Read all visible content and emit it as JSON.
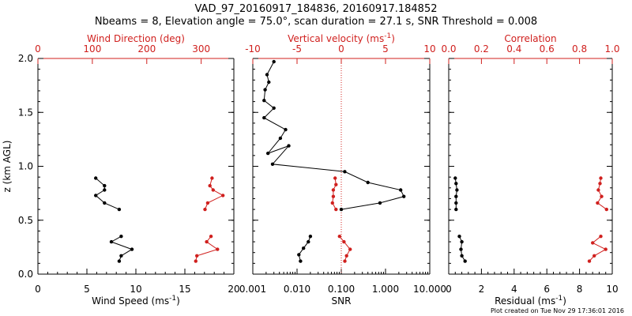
{
  "header": {
    "title_line1": "VAD_97_20160917_184836, 20160917.184852",
    "title_line2": "Nbeams = 8, Elevation angle = 75.0°, scan duration = 27.1 s, SNR Threshold = 0.008"
  },
  "footer": {
    "created": "Plot created on Tue Nov 29 17:36:01 2016"
  },
  "colors": {
    "primary": "#000000",
    "secondary": "#d0201e"
  },
  "chart_data": [
    {
      "type": "line",
      "panel": "wind",
      "y_label_prefix": "z (km AGL)",
      "y_ticks": [
        "0.0",
        "0.5",
        "1.0",
        "1.5",
        "2.0"
      ],
      "ylim": [
        0,
        2
      ],
      "bottom_axis": {
        "label": "Wind Speed (ms",
        "label_sup": "-1",
        "label_suffix": ")",
        "range": [
          0,
          20
        ],
        "ticks": [
          "0",
          "5",
          "10",
          "15",
          "20"
        ]
      },
      "top_axis": {
        "label": "Wind Direction (deg)",
        "range": [
          0,
          360
        ],
        "ticks": [
          "0",
          "100",
          "200",
          "300"
        ]
      },
      "series": [
        {
          "axis": "bottom",
          "segments": [
            [
              [
                8.3,
                0.12
              ],
              [
                8.5,
                0.17
              ],
              [
                9.6,
                0.23
              ],
              [
                7.5,
                0.3
              ],
              [
                8.5,
                0.35
              ]
            ],
            [
              [
                8.3,
                0.6
              ],
              [
                6.8,
                0.66
              ],
              [
                5.9,
                0.73
              ],
              [
                6.8,
                0.78
              ],
              [
                6.8,
                0.82
              ],
              [
                5.9,
                0.89
              ]
            ]
          ]
        },
        {
          "axis": "top",
          "segments": [
            [
              [
                290,
                0.12
              ],
              [
                292,
                0.17
              ],
              [
                330,
                0.23
              ],
              [
                310,
                0.3
              ],
              [
                318,
                0.35
              ]
            ],
            [
              [
                307,
                0.6
              ],
              [
                312,
                0.66
              ],
              [
                340,
                0.73
              ],
              [
                322,
                0.78
              ],
              [
                316,
                0.82
              ],
              [
                320,
                0.89
              ]
            ]
          ]
        }
      ]
    },
    {
      "type": "line",
      "panel": "snr",
      "bottom_axis": {
        "label": "SNR",
        "scale": "log",
        "range": [
          0.001,
          10
        ],
        "ticks": [
          "0.001",
          "0.010",
          "0.100",
          "1.000",
          "10.000"
        ]
      },
      "top_axis": {
        "label": "Vertical velocity (ms",
        "label_sup": "-1",
        "label_suffix": ")",
        "range": [
          -10,
          10
        ],
        "ticks": [
          "-10",
          "-5",
          "0",
          "5",
          "10"
        ],
        "zero_line": "dotted"
      },
      "series": [
        {
          "axis": "bottom",
          "segments": [
            [
              [
                0.012,
                0.12
              ],
              [
                0.011,
                0.18
              ],
              [
                0.014,
                0.24
              ],
              [
                0.018,
                0.3
              ],
              [
                0.02,
                0.35
              ]
            ],
            [
              [
                0.1,
                0.6
              ],
              [
                0.75,
                0.66
              ],
              [
                2.6,
                0.72
              ],
              [
                2.2,
                0.78
              ],
              [
                0.4,
                0.85
              ],
              [
                0.12,
                0.95
              ],
              [
                0.0028,
                1.02
              ],
              [
                0.0065,
                1.19
              ],
              [
                0.0022,
                1.12
              ],
              [
                0.0042,
                1.26
              ],
              [
                0.0055,
                1.34
              ],
              [
                0.0018,
                1.45
              ],
              [
                0.003,
                1.54
              ],
              [
                0.0018,
                1.61
              ],
              [
                0.0019,
                1.71
              ],
              [
                0.0023,
                1.78
              ],
              [
                0.0021,
                1.85
              ],
              [
                0.003,
                1.97
              ]
            ]
          ]
        },
        {
          "axis": "top",
          "segments": [
            [
              [
                0.4,
                0.12
              ],
              [
                0.6,
                0.17
              ],
              [
                1.0,
                0.23
              ],
              [
                0.3,
                0.3
              ],
              [
                -0.2,
                0.35
              ]
            ],
            [
              [
                -0.6,
                0.6
              ],
              [
                -1.0,
                0.66
              ],
              [
                -0.9,
                0.72
              ],
              [
                -0.9,
                0.78
              ],
              [
                -0.6,
                0.83
              ],
              [
                -0.7,
                0.89
              ]
            ]
          ]
        }
      ]
    },
    {
      "type": "line",
      "panel": "correlation",
      "bottom_axis": {
        "label": "Residual (ms",
        "label_sup": "-1",
        "label_suffix": ")",
        "range": [
          0,
          10
        ],
        "ticks": [
          "0",
          "2",
          "4",
          "6",
          "8",
          "10"
        ]
      },
      "top_axis": {
        "label": "Correlation",
        "range": [
          0,
          1
        ],
        "ticks": [
          "0.0",
          "0.2",
          "0.4",
          "0.6",
          "0.8",
          "1.0"
        ]
      },
      "series": [
        {
          "axis": "bottom",
          "segments": [
            [
              [
                1.0,
                0.12
              ],
              [
                0.8,
                0.17
              ],
              [
                0.75,
                0.23
              ],
              [
                0.8,
                0.3
              ],
              [
                0.65,
                0.35
              ]
            ],
            [
              [
                0.45,
                0.6
              ],
              [
                0.45,
                0.66
              ],
              [
                0.45,
                0.72
              ],
              [
                0.5,
                0.78
              ],
              [
                0.45,
                0.84
              ],
              [
                0.4,
                0.89
              ]
            ]
          ]
        },
        {
          "axis": "top",
          "segments": [
            [
              [
                0.86,
                0.12
              ],
              [
                0.89,
                0.17
              ],
              [
                0.96,
                0.23
              ],
              [
                0.88,
                0.29
              ],
              [
                0.93,
                0.35
              ]
            ],
            [
              [
                0.965,
                0.6
              ],
              [
                0.91,
                0.66
              ],
              [
                0.935,
                0.72
              ],
              [
                0.915,
                0.78
              ],
              [
                0.925,
                0.84
              ],
              [
                0.93,
                0.89
              ]
            ]
          ]
        }
      ]
    }
  ]
}
